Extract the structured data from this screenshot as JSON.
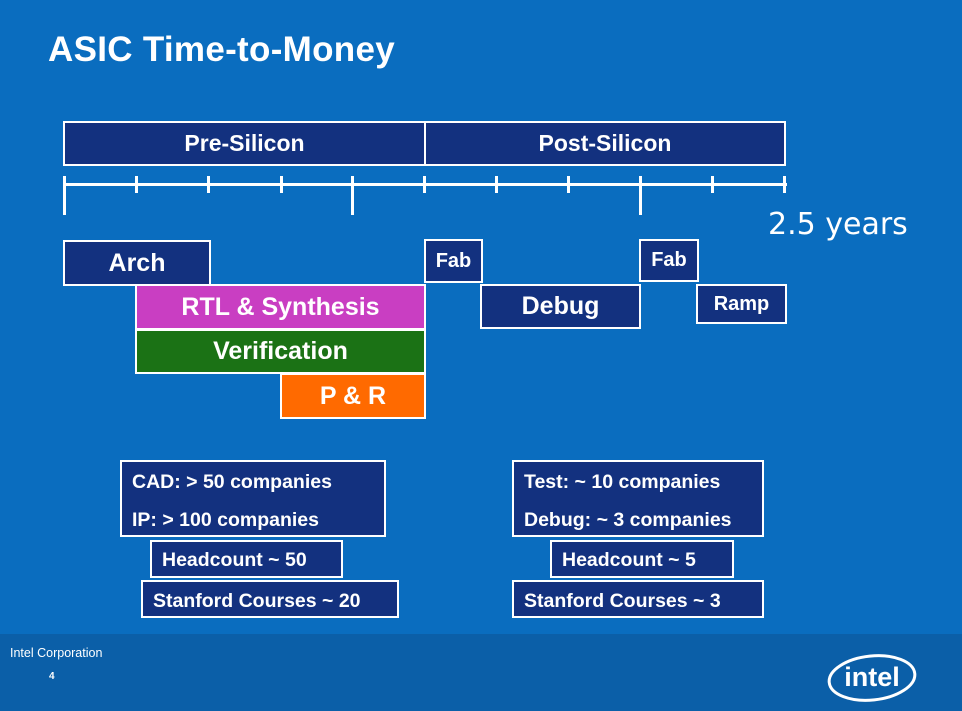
{
  "slide": {
    "title": "ASIC Time-to-Money"
  },
  "timeline": {
    "phases": [
      "Pre-Silicon",
      "Post-Silicon"
    ],
    "duration_label": "2.5 years"
  },
  "tasks": {
    "arch": "Arch",
    "rtl": "RTL & Synthesis",
    "verification": "Verification",
    "pnr": "P & R",
    "fab1": "Fab",
    "debug": "Debug",
    "fab2": "Fab",
    "ramp": "Ramp"
  },
  "pre_silicon_info": {
    "vendors": [
      "CAD: > 50 companies",
      "IP: > 100 companies"
    ],
    "headcount": "Headcount ~ 50",
    "courses": "Stanford Courses ~ 20"
  },
  "post_silicon_info": {
    "vendors": [
      "Test: ~ 10 companies",
      "Debug: ~ 3 companies"
    ],
    "headcount": "Headcount ~ 5",
    "courses": "Stanford Courses ~ 3"
  },
  "footer": {
    "company": "Intel Corporation",
    "page_number": "4",
    "logo_text": "intel"
  },
  "colors": {
    "background": "#0a6dbf",
    "navy": "#13317f",
    "rtl": "#c93ec2",
    "verification": "#1b7215",
    "pnr": "#ff6a00"
  }
}
